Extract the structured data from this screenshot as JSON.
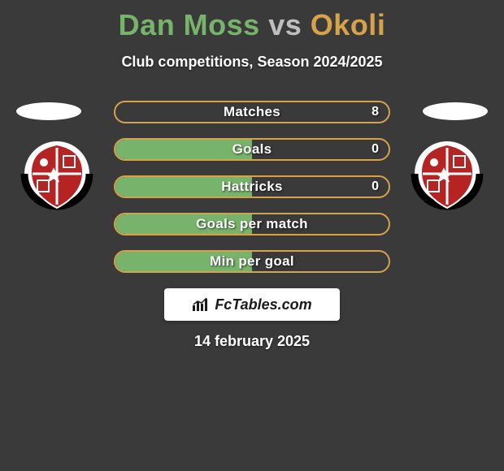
{
  "background": "#3a3a3a",
  "title": {
    "player1": "Dan Moss",
    "vs": "vs",
    "player2": "Okoli",
    "player1_color": "#77b36a",
    "vs_color": "#bfbfbf",
    "player2_color": "#d6a24a",
    "fontsize": 36
  },
  "subtitle": {
    "text": "Club competitions, Season 2024/2025",
    "color": "#ffffff",
    "fontsize": 18
  },
  "stats": {
    "fill_color": "#77b36a",
    "border_color": "#d6a24a",
    "text_color": "#ffffff",
    "rows": [
      {
        "label": "Matches",
        "left": "",
        "right": "8",
        "fill_pct": 0
      },
      {
        "label": "Goals",
        "left": "",
        "right": "0",
        "fill_pct": 50
      },
      {
        "label": "Hattricks",
        "left": "",
        "right": "0",
        "fill_pct": 50
      },
      {
        "label": "Goals per match",
        "left": "",
        "right": "",
        "fill_pct": 50
      },
      {
        "label": "Min per goal",
        "left": "",
        "right": "",
        "fill_pct": 50
      }
    ]
  },
  "badge": {
    "outer_color": "#ffffff",
    "inner_color": "#b62323",
    "band_color": "#000000"
  },
  "watermark": {
    "text": "FcTables.com",
    "bg_color": "#ffffff",
    "text_color": "#1a1a1a",
    "bars_color": "#1a1a1a"
  },
  "date": {
    "text": "14 february 2025",
    "color": "#ffffff",
    "fontsize": 18
  }
}
